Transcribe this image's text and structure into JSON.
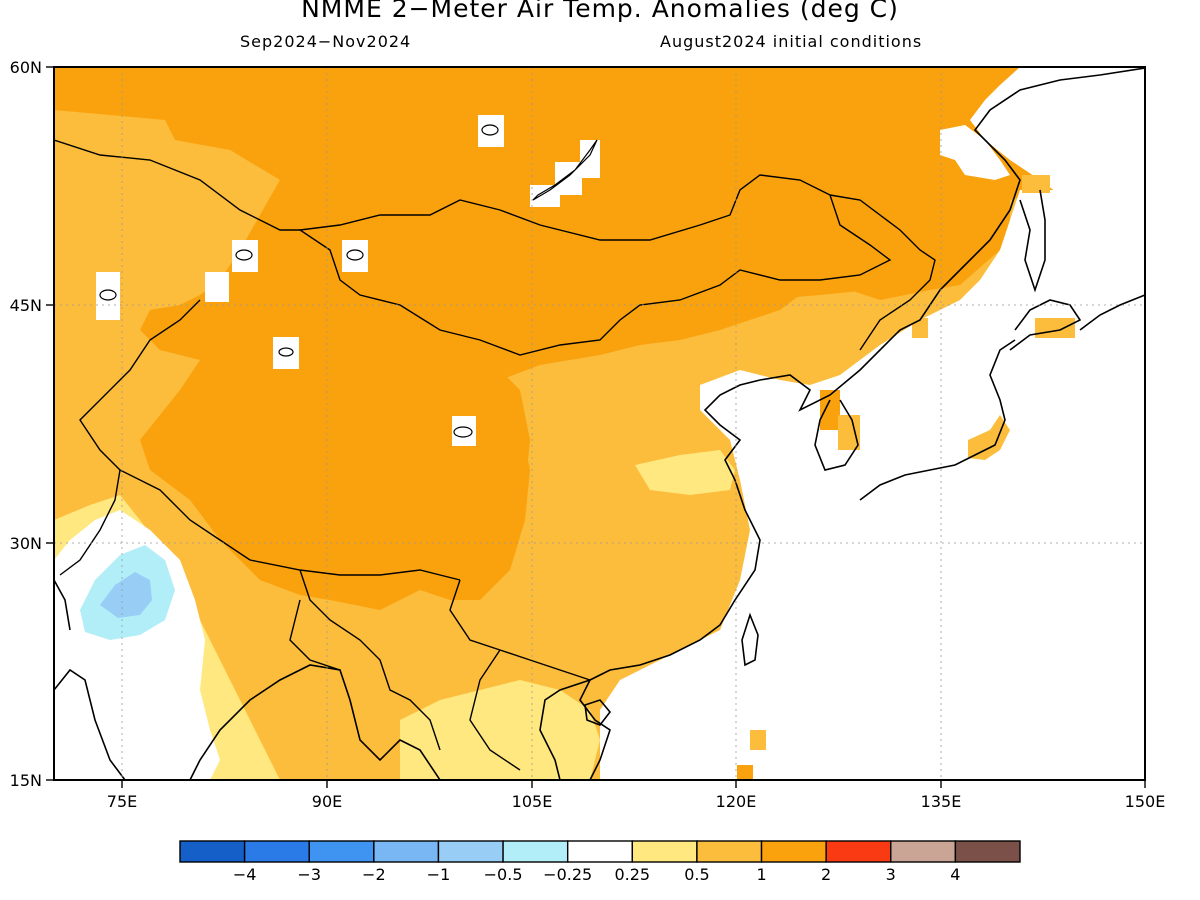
{
  "title": "NMME 2−Meter Air Temp. Anomalies (deg C)",
  "subtitle_left": "Sep2024−Nov2024",
  "subtitle_right": "August2024 initial conditions",
  "map": {
    "lon_range": [
      70,
      150
    ],
    "lat_range": [
      15,
      60
    ],
    "lon_ticks": [
      "75E",
      "90E",
      "105E",
      "120E",
      "135E",
      "150E"
    ],
    "lat_ticks": [
      "60N",
      "45N",
      "30N",
      "15N"
    ],
    "grid": "dotted"
  },
  "legend": {
    "colors": [
      "#1560c8",
      "#2a7ae8",
      "#3e94f0",
      "#78b6f4",
      "#98cef6",
      "#b2eef8",
      "#ffffff",
      "#ffe880",
      "#fcbc3c",
      "#f9a20e",
      "#f93a12",
      "#caa596",
      "#7a5048"
    ],
    "labels": [
      "−4",
      "−3",
      "−2",
      "−1",
      "−0.5",
      "−0.25",
      "0.25",
      "0.5",
      "1",
      "2",
      "3",
      "4"
    ]
  },
  "anomaly_colors": {
    "neutral": "#ffffff",
    "warm_025_05": "#ffe880",
    "warm_05_1": "#fcbc3c",
    "warm_1_2": "#f9a20e",
    "cool_025_05": "#b2eef8",
    "cool_05_1": "#98cef6"
  }
}
